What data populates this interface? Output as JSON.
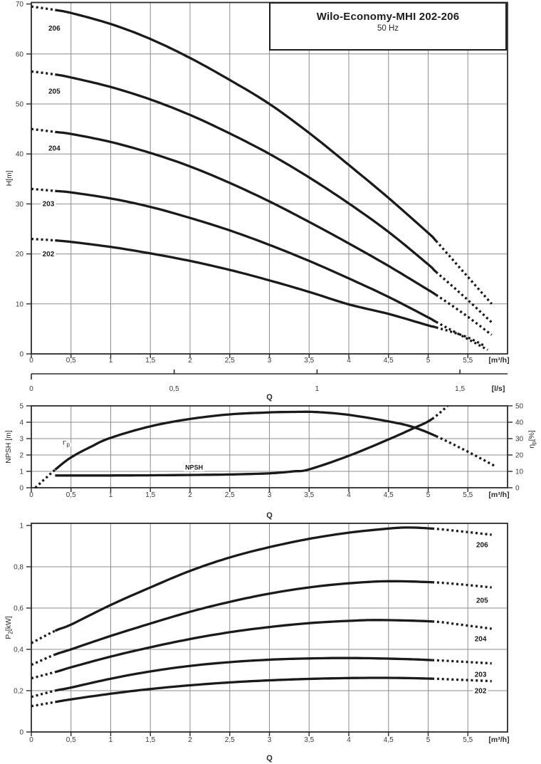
{
  "header": {
    "title": "Wilo-Economy-MHI 202-206",
    "subtitle": "50 Hz"
  },
  "colors": {
    "curve": "#1a1a1a",
    "grid": "#8e8e8e",
    "axis": "#2b2b2b",
    "text": "#3a3a3a"
  },
  "chart_data": [
    {
      "id": "head-curves",
      "type": "line",
      "title": "Wilo-Economy-MHI 202-206",
      "subtitle": "50 Hz",
      "ylabel": "H[m]",
      "xlabel": "Q",
      "x_unit": "[m³/h]",
      "x2_unit": "[l/s]",
      "xlim": [
        0,
        6
      ],
      "ylim": [
        0,
        70.3
      ],
      "xticks": [
        0,
        0.5,
        1,
        1.5,
        2,
        2.5,
        3,
        3.5,
        4,
        4.5,
        5,
        5.5
      ],
      "yticks": [
        0,
        10,
        20,
        30,
        40,
        50,
        60,
        70
      ],
      "x2ticks": [
        0,
        0.5,
        1,
        1.5
      ],
      "x2_factor": 3.6,
      "grid": true,
      "series": [
        {
          "name": "206",
          "solid_from": 0.3,
          "solid_to": 5.1,
          "points": [
            [
              0,
              69.5
            ],
            [
              0.3,
              68.8
            ],
            [
              0.5,
              68.2
            ],
            [
              1,
              66
            ],
            [
              1.5,
              63
            ],
            [
              2,
              59.2
            ],
            [
              2.5,
              54.8
            ],
            [
              3,
              50
            ],
            [
              3.5,
              44.2
            ],
            [
              4,
              37.8
            ],
            [
              4.5,
              31.2
            ],
            [
              5,
              24.2
            ],
            [
              5.1,
              22.6
            ],
            [
              5.45,
              16.3
            ],
            [
              5.8,
              10
            ]
          ]
        },
        {
          "name": "205",
          "solid_from": 0.3,
          "solid_to": 5.1,
          "points": [
            [
              0,
              56.5
            ],
            [
              0.3,
              55.9
            ],
            [
              0.5,
              55.3
            ],
            [
              1,
              53.4
            ],
            [
              1.5,
              50.9
            ],
            [
              2,
              47.8
            ],
            [
              2.5,
              44.1
            ],
            [
              3,
              40
            ],
            [
              3.5,
              35.3
            ],
            [
              4,
              30.1
            ],
            [
              4.5,
              24.4
            ],
            [
              5,
              17.9
            ],
            [
              5.1,
              16.4
            ],
            [
              5.45,
              11.5
            ],
            [
              5.8,
              6.3
            ]
          ]
        },
        {
          "name": "204",
          "solid_from": 0.3,
          "solid_to": 5.1,
          "points": [
            [
              0,
              45
            ],
            [
              0.3,
              44.4
            ],
            [
              0.5,
              44
            ],
            [
              1,
              42.4
            ],
            [
              1.5,
              40.2
            ],
            [
              2,
              37.5
            ],
            [
              2.5,
              34.2
            ],
            [
              3,
              30.5
            ],
            [
              3.5,
              26.4
            ],
            [
              4,
              22.1
            ],
            [
              4.5,
              17.6
            ],
            [
              5,
              12.8
            ],
            [
              5.1,
              11.8
            ],
            [
              5.45,
              8
            ],
            [
              5.8,
              3.8
            ]
          ]
        },
        {
          "name": "203",
          "solid_from": 0.3,
          "solid_to": 5.1,
          "points": [
            [
              0,
              33
            ],
            [
              0.3,
              32.6
            ],
            [
              0.5,
              32.3
            ],
            [
              1,
              31.1
            ],
            [
              1.5,
              29.4
            ],
            [
              2,
              27.2
            ],
            [
              2.5,
              24.7
            ],
            [
              3,
              21.8
            ],
            [
              3.5,
              18.6
            ],
            [
              4,
              15.1
            ],
            [
              4.5,
              11.4
            ],
            [
              5,
              7.3
            ],
            [
              5.1,
              6.4
            ],
            [
              5.45,
              3.4
            ],
            [
              5.75,
              0.8
            ]
          ]
        },
        {
          "name": "202",
          "solid_from": 0.3,
          "solid_to": 5.1,
          "points": [
            [
              0,
              23
            ],
            [
              0.3,
              22.7
            ],
            [
              0.5,
              22.4
            ],
            [
              1,
              21.4
            ],
            [
              1.5,
              20.1
            ],
            [
              2,
              18.6
            ],
            [
              2.5,
              16.8
            ],
            [
              3,
              14.7
            ],
            [
              3.5,
              12.4
            ],
            [
              4,
              9.9
            ],
            [
              4.5,
              8
            ],
            [
              5,
              5.7
            ],
            [
              5.1,
              5.3
            ],
            [
              5.45,
              3.6
            ],
            [
              5.7,
              1.7
            ]
          ]
        }
      ],
      "labels": [
        {
          "text": "206",
          "q": 0.29,
          "v": 65.2,
          "bold": true
        },
        {
          "text": "205",
          "q": 0.29,
          "v": 52.6,
          "bold": true
        },
        {
          "text": "204",
          "q": 0.29,
          "v": 41.2,
          "bold": true
        },
        {
          "text": "203",
          "q": 0.215,
          "v": 30.05,
          "bold": true
        },
        {
          "text": "202",
          "q": 0.215,
          "v": 20.05,
          "bold": true
        }
      ]
    },
    {
      "id": "npsh-efficiency",
      "type": "line",
      "ylabel": "NPSH [m]",
      "y2label": "η_{p}[%]",
      "xlabel": "Q",
      "x_unit": "[m³/h]",
      "xlim": [
        0,
        6
      ],
      "ylim": [
        0,
        5
      ],
      "y2lim": [
        0,
        50
      ],
      "xticks": [
        0,
        0.5,
        1,
        1.5,
        2,
        2.5,
        3,
        3.5,
        4,
        4.5,
        5,
        5.5
      ],
      "yticks": [
        0,
        1,
        2,
        3,
        4,
        5
      ],
      "y2ticks": [
        0,
        10,
        20,
        30,
        40,
        50
      ],
      "grid": true,
      "series": [
        {
          "name": "eta-p",
          "axis": "right",
          "solid_from": 0.3,
          "solid_to": 5.1,
          "points": [
            [
              0.05,
              0
            ],
            [
              0.3,
              11
            ],
            [
              0.5,
              18.5
            ],
            [
              0.75,
              25
            ],
            [
              1,
              30.5
            ],
            [
              1.5,
              37.5
            ],
            [
              2,
              42
            ],
            [
              2.5,
              44.8
            ],
            [
              3,
              46
            ],
            [
              3.3,
              46.3
            ],
            [
              3.6,
              46.2
            ],
            [
              4,
              44.5
            ],
            [
              4.5,
              40.5
            ],
            [
              4.8,
              37.2
            ],
            [
              5.1,
              31.5
            ],
            [
              5.5,
              22
            ],
            [
              5.85,
              13
            ]
          ]
        },
        {
          "name": "NPSH",
          "axis": "left",
          "solid_from": 0.3,
          "solid_to": 5.05,
          "points": [
            [
              0.3,
              0.75
            ],
            [
              1,
              0.75
            ],
            [
              1.5,
              0.76
            ],
            [
              2,
              0.78
            ],
            [
              2.5,
              0.81
            ],
            [
              3,
              0.88
            ],
            [
              3.3,
              1
            ],
            [
              3.5,
              1.12
            ],
            [
              4,
              1.95
            ],
            [
              4.5,
              2.95
            ],
            [
              4.8,
              3.6
            ],
            [
              5.05,
              4.2
            ],
            [
              5.3,
              5.25
            ]
          ]
        }
      ],
      "labels": [
        {
          "text": "η_{p}",
          "q": 0.44,
          "v": 2.78,
          "bold": false
        },
        {
          "text": "NPSH",
          "q": 2.05,
          "v": 1.26,
          "bold": true,
          "size": 9
        }
      ]
    },
    {
      "id": "power-curves",
      "type": "line",
      "ylabel": "P_{2}[kW]",
      "xlabel": "Q",
      "x_unit": "[m³/h]",
      "xlim": [
        0,
        6
      ],
      "ylim": [
        0,
        1.0103
      ],
      "xticks": [
        0,
        0.5,
        1,
        1.5,
        2,
        2.5,
        3,
        3.5,
        4,
        4.5,
        5,
        5.5
      ],
      "yticks": [
        0,
        0.2,
        0.4,
        0.6,
        0.8,
        1
      ],
      "grid": true,
      "series": [
        {
          "name": "206",
          "solid_from": 0.3,
          "solid_to": 5.05,
          "points": [
            [
              0,
              0.43
            ],
            [
              0.3,
              0.49
            ],
            [
              0.5,
              0.52
            ],
            [
              1,
              0.615
            ],
            [
              1.5,
              0.7
            ],
            [
              2,
              0.78
            ],
            [
              2.5,
              0.845
            ],
            [
              3,
              0.895
            ],
            [
              3.5,
              0.935
            ],
            [
              4,
              0.965
            ],
            [
              4.5,
              0.985
            ],
            [
              4.75,
              0.99
            ],
            [
              5.05,
              0.985
            ],
            [
              5.4,
              0.972
            ],
            [
              5.8,
              0.955
            ]
          ]
        },
        {
          "name": "205",
          "solid_from": 0.3,
          "solid_to": 5.05,
          "points": [
            [
              0,
              0.325
            ],
            [
              0.3,
              0.375
            ],
            [
              0.5,
              0.4
            ],
            [
              1,
              0.465
            ],
            [
              1.5,
              0.525
            ],
            [
              2,
              0.582
            ],
            [
              2.5,
              0.63
            ],
            [
              3,
              0.67
            ],
            [
              3.5,
              0.7
            ],
            [
              4,
              0.72
            ],
            [
              4.5,
              0.73
            ],
            [
              5.05,
              0.725
            ],
            [
              5.4,
              0.715
            ],
            [
              5.8,
              0.7
            ]
          ]
        },
        {
          "name": "204",
          "solid_from": 0.3,
          "solid_to": 5.05,
          "points": [
            [
              0,
              0.26
            ],
            [
              0.3,
              0.29
            ],
            [
              0.5,
              0.313
            ],
            [
              1,
              0.365
            ],
            [
              1.5,
              0.41
            ],
            [
              2,
              0.45
            ],
            [
              2.5,
              0.483
            ],
            [
              3,
              0.508
            ],
            [
              3.5,
              0.527
            ],
            [
              4,
              0.538
            ],
            [
              4.4,
              0.542
            ],
            [
              5.05,
              0.535
            ],
            [
              5.4,
              0.52
            ],
            [
              5.8,
              0.5
            ]
          ]
        },
        {
          "name": "203",
          "solid_from": 0.3,
          "solid_to": 5.05,
          "points": [
            [
              0,
              0.17
            ],
            [
              0.3,
              0.2
            ],
            [
              0.5,
              0.215
            ],
            [
              1,
              0.258
            ],
            [
              1.5,
              0.293
            ],
            [
              2,
              0.32
            ],
            [
              2.5,
              0.338
            ],
            [
              3,
              0.35
            ],
            [
              3.5,
              0.356
            ],
            [
              4,
              0.358
            ],
            [
              4.5,
              0.355
            ],
            [
              5.05,
              0.348
            ],
            [
              5.8,
              0.332
            ]
          ]
        },
        {
          "name": "202",
          "solid_from": 0.3,
          "solid_to": 5.05,
          "points": [
            [
              0,
              0.125
            ],
            [
              0.3,
              0.145
            ],
            [
              0.5,
              0.158
            ],
            [
              1,
              0.185
            ],
            [
              1.5,
              0.208
            ],
            [
              2,
              0.226
            ],
            [
              2.5,
              0.24
            ],
            [
              3,
              0.25
            ],
            [
              3.5,
              0.257
            ],
            [
              4,
              0.261
            ],
            [
              4.5,
              0.262
            ],
            [
              5.05,
              0.258
            ],
            [
              5.8,
              0.246
            ]
          ]
        }
      ],
      "labels": [
        {
          "text": "206",
          "q": 5.68,
          "v": 0.907,
          "bold": true
        },
        {
          "text": "205",
          "q": 5.68,
          "v": 0.638,
          "bold": true
        },
        {
          "text": "204",
          "q": 5.66,
          "v": 0.452,
          "bold": true
        },
        {
          "text": "203",
          "q": 5.66,
          "v": 0.279,
          "bold": true
        },
        {
          "text": "202",
          "q": 5.66,
          "v": 0.2,
          "bold": true
        }
      ]
    }
  ]
}
